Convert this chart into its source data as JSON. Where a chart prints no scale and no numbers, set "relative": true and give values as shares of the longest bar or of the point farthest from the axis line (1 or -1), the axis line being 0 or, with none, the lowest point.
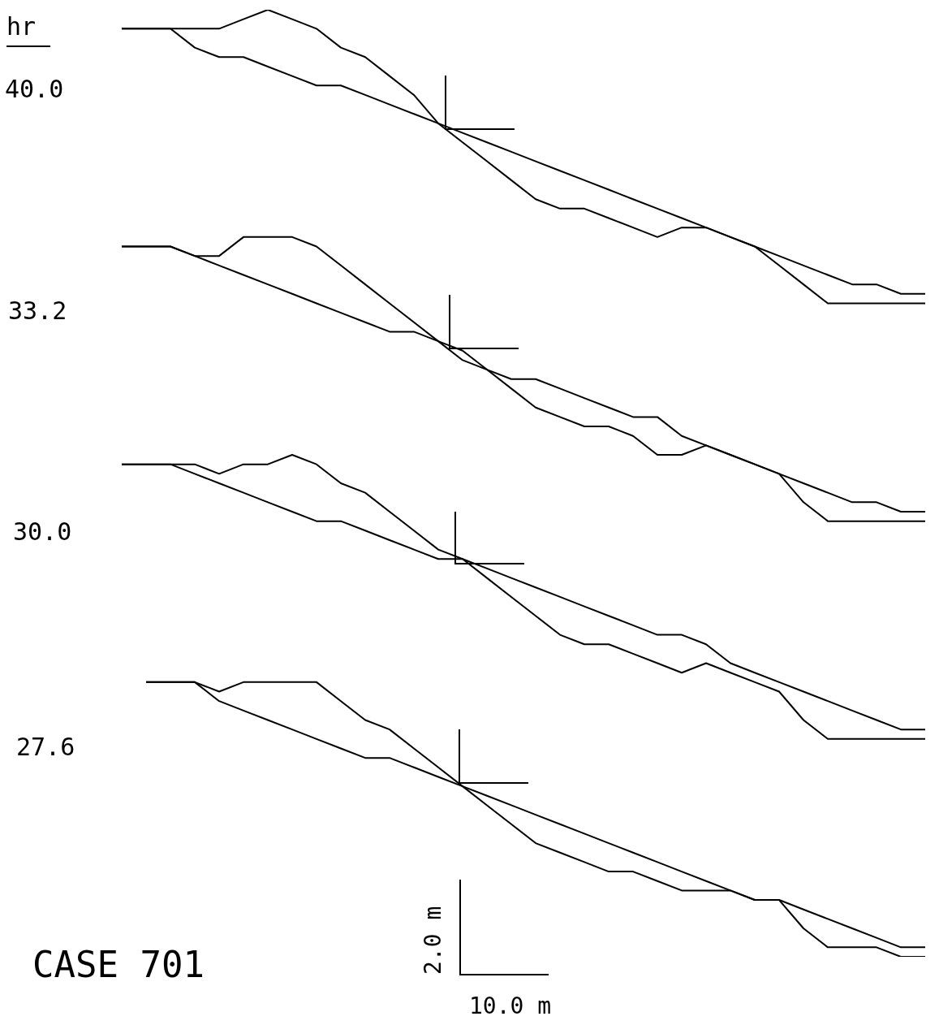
{
  "chart_data": {
    "type": "line",
    "relative": true,
    "marker": "none",
    "categories": [
      null,
      null,
      null,
      null,
      null,
      null,
      null,
      null,
      null,
      null,
      null,
      null,
      null,
      null,
      null,
      null,
      null,
      null,
      null,
      null,
      null,
      null,
      null,
      null,
      null,
      null,
      null,
      null,
      null,
      null,
      null,
      null,
      null,
      null
    ],
    "series": [
      {
        "color": "#000000",
        "values": [
          0.98,
          0.98,
          0.98,
          0.96,
          0.95,
          0.95,
          0.94,
          0.93,
          0.92,
          0.92,
          0.91,
          0.9,
          0.89,
          0.88,
          0.87,
          0.86,
          0.85,
          0.84,
          0.83,
          0.82,
          0.81,
          0.8,
          0.79,
          0.78,
          0.77,
          0.76,
          0.75,
          0.74,
          0.73,
          0.72,
          0.71,
          0.71,
          0.7,
          0.7
        ]
      },
      {
        "color": "#000000",
        "values": [
          0.98,
          0.98,
          0.98,
          0.98,
          0.98,
          0.99,
          1.0,
          0.99,
          0.98,
          0.96,
          0.95,
          0.93,
          0.91,
          0.88,
          0.86,
          0.84,
          0.82,
          0.8,
          0.79,
          0.79,
          0.78,
          0.77,
          0.76,
          0.77,
          0.77,
          0.76,
          0.75,
          0.73,
          0.71,
          0.69,
          0.69,
          0.69,
          0.69,
          0.69
        ]
      },
      {
        "color": "#000000",
        "values": [
          0.75,
          0.75,
          0.75,
          0.74,
          0.73,
          0.72,
          0.71,
          0.7,
          0.69,
          0.68,
          0.67,
          0.66,
          0.66,
          0.65,
          0.64,
          0.62,
          0.61,
          0.61,
          0.6,
          0.59,
          0.58,
          0.57,
          0.57,
          0.55,
          0.54,
          0.53,
          0.52,
          0.51,
          0.5,
          0.49,
          0.48,
          0.48,
          0.47,
          0.47
        ]
      },
      {
        "color": "#000000",
        "values": [
          0.75,
          0.75,
          0.75,
          0.74,
          0.74,
          0.76,
          0.76,
          0.76,
          0.75,
          0.73,
          0.71,
          0.69,
          0.67,
          0.65,
          0.63,
          0.62,
          0.6,
          0.58,
          0.57,
          0.56,
          0.56,
          0.55,
          0.53,
          0.53,
          0.54,
          0.53,
          0.52,
          0.51,
          0.48,
          0.46,
          0.46,
          0.46,
          0.46,
          0.46
        ]
      },
      {
        "color": "#000000",
        "values": [
          0.52,
          0.52,
          0.52,
          0.51,
          0.5,
          0.49,
          0.48,
          0.47,
          0.46,
          0.46,
          0.45,
          0.44,
          0.43,
          0.42,
          0.42,
          0.41,
          0.4,
          0.39,
          0.38,
          0.37,
          0.36,
          0.35,
          0.34,
          0.34,
          0.33,
          0.31,
          0.3,
          0.29,
          0.28,
          0.27,
          0.26,
          0.25,
          0.24,
          0.24
        ]
      },
      {
        "color": "#000000",
        "values": [
          0.52,
          0.52,
          0.52,
          0.52,
          0.51,
          0.52,
          0.52,
          0.53,
          0.52,
          0.5,
          0.49,
          0.47,
          0.45,
          0.43,
          0.42,
          0.4,
          0.38,
          0.36,
          0.34,
          0.33,
          0.33,
          0.32,
          0.31,
          0.3,
          0.31,
          0.3,
          0.29,
          0.28,
          0.25,
          0.23,
          0.23,
          0.23,
          0.23,
          0.23
        ]
      },
      {
        "color": "#000000",
        "values": [
          null,
          0.29,
          0.29,
          0.29,
          0.27,
          0.26,
          0.25,
          0.24,
          0.23,
          0.22,
          0.21,
          0.21,
          0.2,
          0.19,
          0.18,
          0.17,
          0.16,
          0.15,
          0.14,
          0.13,
          0.12,
          0.11,
          0.1,
          0.09,
          0.08,
          0.07,
          0.06,
          0.06,
          0.05,
          0.04,
          0.03,
          0.02,
          0.01,
          0.01
        ]
      },
      {
        "color": "#000000",
        "values": [
          null,
          0.29,
          0.29,
          0.29,
          0.28,
          0.29,
          0.29,
          0.29,
          0.29,
          0.27,
          0.25,
          0.24,
          0.22,
          0.2,
          0.18,
          0.16,
          0.14,
          0.12,
          0.11,
          0.1,
          0.09,
          0.09,
          0.08,
          0.07,
          0.07,
          0.07,
          0.06,
          0.06,
          0.03,
          0.01,
          0.01,
          0.01,
          0.0,
          0.0
        ]
      }
    ],
    "annotations": [
      "hr",
      "40.0",
      "33.2",
      "30.0",
      "27.6",
      "CASE 701",
      "2.0 m",
      "10.0 m"
    ]
  }
}
